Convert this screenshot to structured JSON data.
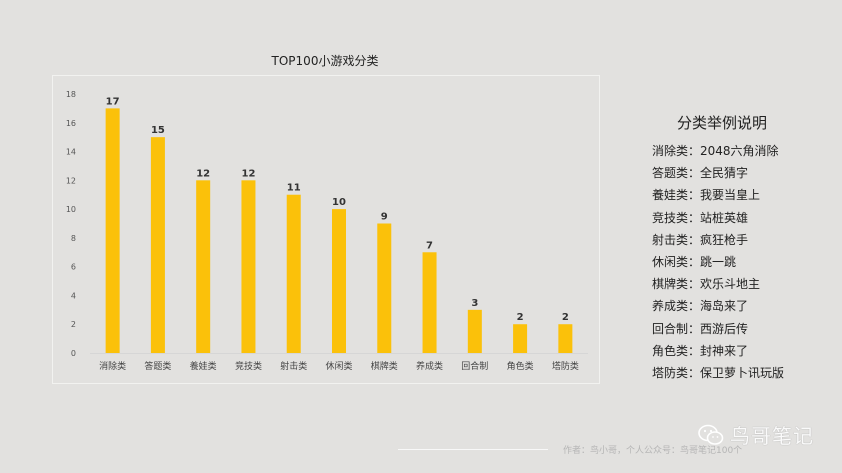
{
  "chart_data": {
    "type": "bar",
    "title": "TOP100小游戏分类",
    "categories": [
      "消除类",
      "答题类",
      "養娃类",
      "竞技类",
      "射击类",
      "休闲类",
      "棋牌类",
      "养成类",
      "回合制",
      "角色类",
      "塔防类"
    ],
    "values": [
      17,
      15,
      12,
      12,
      11,
      10,
      9,
      7,
      3,
      2,
      2
    ],
    "ylim": [
      0,
      18
    ],
    "yticks": [
      "0",
      "2",
      "4",
      "6",
      "8",
      "10",
      "12",
      "14",
      "16",
      "18"
    ],
    "grid": false,
    "bar_color": "#fbc10a"
  },
  "legend": {
    "title": "分类举例说明",
    "items": [
      "消除类：2048六角消除",
      "答题类：全民猜字",
      "養娃类：我要当皇上",
      "竞技类：站桩英雄",
      "射击类：疯狂枪手",
      "休闲类：跳一跳",
      "棋牌类：欢乐斗地主",
      "养成类：海岛来了",
      "回合制：西游后传",
      "角色类：封神来了",
      "塔防类：保卫萝卜讯玩版"
    ]
  },
  "footer": {
    "text": "作者：鸟小哥，个人公众号：鸟哥笔记100个"
  },
  "watermark": {
    "text": "鸟哥笔记",
    "icon": "wechat-icon"
  }
}
